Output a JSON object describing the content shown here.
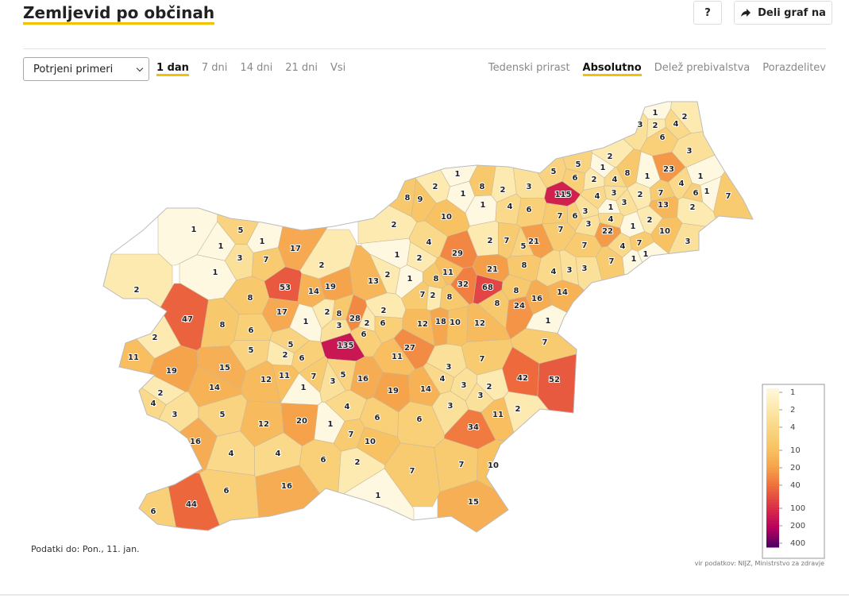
{
  "header": {
    "title": "Zemljevid po občinah",
    "help": "?",
    "share": "Deli graf na"
  },
  "controls": {
    "measure": "Potrjeni primeri",
    "periods": [
      "1 dan",
      "7 dni",
      "14 dni",
      "21 dni",
      "Vsi"
    ],
    "active_period": 0,
    "views": [
      "Tedenski prirast",
      "Absolutno",
      "Delež prebivalstva",
      "Porazdelitev"
    ],
    "active_view": 1
  },
  "map": {
    "values": [
      1,
      2,
      3,
      2,
      4,
      6,
      3,
      2,
      5,
      1,
      8,
      1,
      23,
      5,
      6,
      2,
      4,
      1,
      4,
      7,
      2,
      6,
      1,
      7,
      115,
      4,
      3,
      3,
      13,
      2,
      7,
      6,
      3,
      4,
      3,
      1,
      2,
      1,
      22,
      10,
      3,
      7,
      7,
      4,
      7,
      1,
      1,
      7,
      1,
      8,
      2,
      1,
      2,
      3,
      8,
      9,
      1,
      4,
      6,
      10,
      2,
      21,
      2,
      7,
      5,
      4,
      29,
      21,
      8,
      4,
      3,
      3,
      1,
      2,
      2,
      13,
      1,
      8,
      11,
      32,
      68,
      8,
      16,
      14,
      7,
      2,
      8,
      24,
      8,
      1,
      5,
      1,
      1,
      3,
      7,
      17,
      1,
      2,
      2,
      53,
      14,
      19,
      8,
      47,
      17,
      8,
      1,
      2,
      8,
      3,
      28,
      2,
      2,
      6,
      6,
      2,
      135,
      6,
      12,
      18,
      10,
      12,
      1,
      7,
      27,
      5,
      5,
      11,
      2,
      6,
      7,
      3,
      11,
      19,
      15,
      11,
      12,
      7,
      5,
      3,
      16,
      4,
      3,
      42,
      52,
      1,
      19,
      14,
      2,
      14,
      2,
      4,
      3,
      3,
      5,
      4,
      3,
      2,
      11,
      12,
      20,
      6,
      6,
      1,
      34,
      16,
      7,
      10,
      4,
      4,
      6,
      2,
      7,
      10,
      7,
      6,
      16,
      1,
      15,
      44,
      6
    ]
  },
  "legend": {
    "ticks": [
      1,
      2,
      4,
      10,
      20,
      40,
      100,
      200,
      400
    ],
    "log_scale": true
  },
  "footer": {
    "date": "Podatki do: Pon., 11. jan.",
    "source": "vir podatkov: NIJZ, Ministrstvo za zdravje"
  }
}
